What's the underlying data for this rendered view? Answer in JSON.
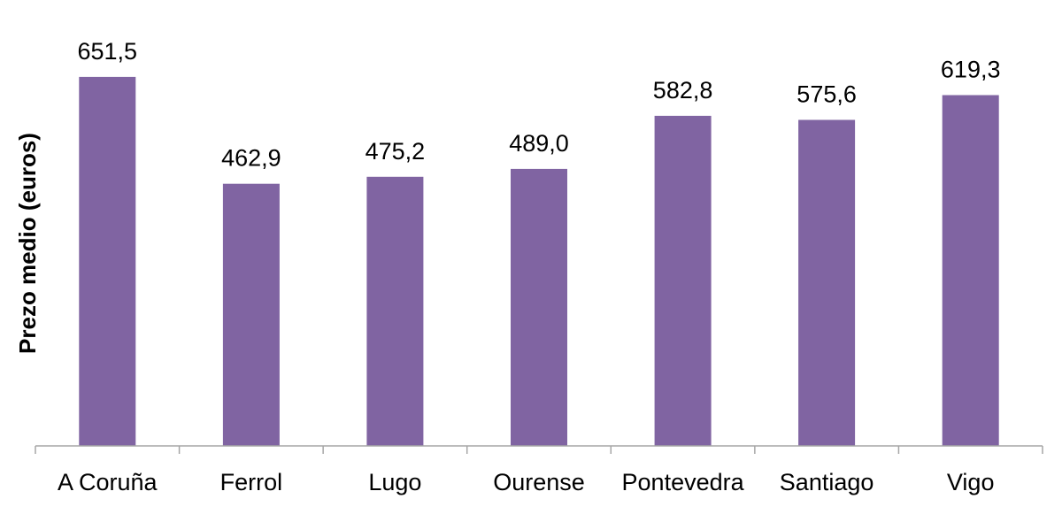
{
  "chart_data": {
    "type": "bar",
    "categories": [
      "A Coruña",
      "Ferrol",
      "Lugo",
      "Ourense",
      "Pontevedra",
      "Santiago",
      "Vigo"
    ],
    "values": [
      651.5,
      462.9,
      475.2,
      489.0,
      582.8,
      575.6,
      619.3
    ],
    "value_labels": [
      "651,5",
      "462,9",
      "475,2",
      "489,0",
      "582,8",
      "575,6",
      "619,3"
    ],
    "title": "",
    "xlabel": "",
    "ylabel": "Prezo medio (euros)",
    "ylim": [
      0,
      700
    ],
    "grid": false,
    "legend": "none",
    "bar_color": "#8064A2",
    "axis_color": "#A6A6A6"
  }
}
